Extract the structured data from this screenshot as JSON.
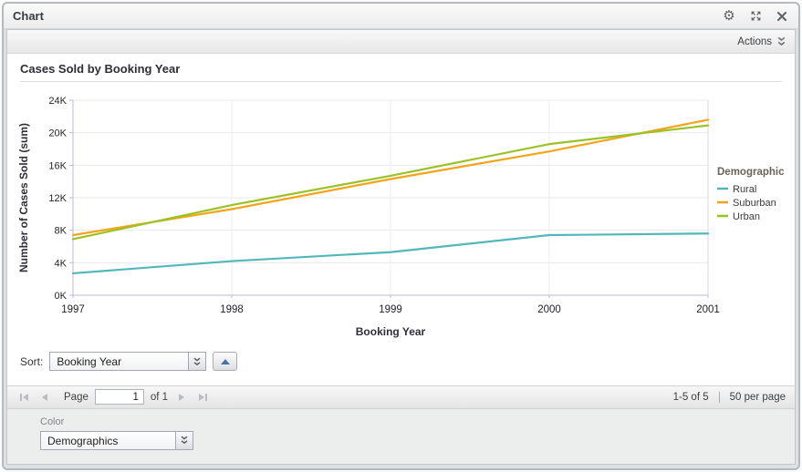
{
  "window": {
    "title": "Chart"
  },
  "toolbar": {
    "actions_label": "Actions"
  },
  "chart_data": {
    "type": "line",
    "title": "Cases Sold by Booking Year",
    "categories": [
      "1997",
      "1998",
      "1999",
      "2000",
      "2001"
    ],
    "series": [
      {
        "name": "Rural",
        "color": "#52b7ba",
        "values": [
          2700,
          4200,
          5300,
          7400,
          7600
        ]
      },
      {
        "name": "Suburban",
        "color": "#f5a31b",
        "values": [
          7400,
          10600,
          14300,
          17700,
          21600
        ]
      },
      {
        "name": "Urban",
        "color": "#9bc225",
        "values": [
          6900,
          11100,
          14700,
          18600,
          20900
        ]
      }
    ],
    "xlabel": "Booking Year",
    "ylabel": "Number of Cases Sold (sum)",
    "ylim": [
      0,
      24000
    ],
    "ytick_step": 4000,
    "ytick_labels": [
      "0K",
      "4K",
      "8K",
      "12K",
      "16K",
      "20K",
      "24K"
    ],
    "legend_title": "Demographic",
    "legend_position": "right",
    "grid": true
  },
  "sort": {
    "label": "Sort:",
    "value": "Booking Year"
  },
  "pager": {
    "page_label": "Page",
    "page_value": "1",
    "of_label": "of 1",
    "range": "1-5 of 5",
    "per_page": "50 per page"
  },
  "color_picker": {
    "label": "Color",
    "value": "Demographics"
  }
}
